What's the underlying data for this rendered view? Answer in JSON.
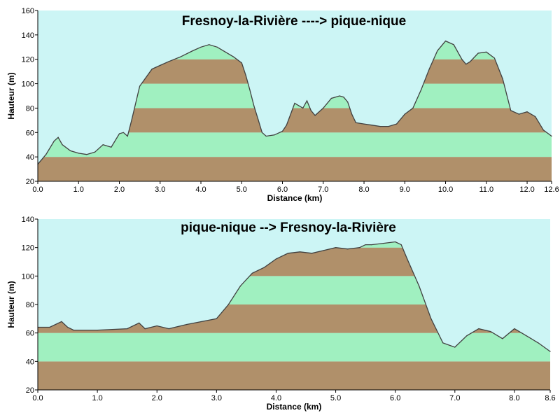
{
  "chart_data": [
    {
      "type": "area",
      "title": "Fresnoy-la-Rivière ----> pique-nique",
      "xlabel": "Distance   (km)",
      "ylabel": "Hauteur (m)",
      "xlim": [
        0,
        12.6
      ],
      "ylim": [
        20,
        160
      ],
      "y_ticks": [
        20,
        40,
        60,
        80,
        100,
        120,
        140,
        160
      ],
      "x_ticks": [
        0,
        1,
        2,
        3,
        4,
        5,
        6,
        7,
        8,
        9,
        10,
        11,
        12,
        12.6
      ],
      "x_tick_labels": [
        "0.0",
        "1.0",
        "2.0",
        "3.0",
        "4.0",
        "5.0",
        "6.0",
        "7.0",
        "8.0",
        "9.0",
        "10.0",
        "11.0",
        "12.0",
        "12.6"
      ],
      "band_step": 20,
      "colors": {
        "sky": "#ccf5f5",
        "band_a": "#b0906a",
        "band_b": "#a0f0c0",
        "profile_line": "#404040"
      },
      "x": [
        0,
        0.2,
        0.4,
        0.5,
        0.6,
        0.8,
        1.0,
        1.2,
        1.4,
        1.6,
        1.8,
        2.0,
        2.1,
        2.2,
        2.3,
        2.5,
        2.8,
        3.0,
        3.2,
        3.5,
        3.8,
        4.0,
        4.2,
        4.4,
        4.6,
        4.8,
        5.0,
        5.1,
        5.2,
        5.3,
        5.4,
        5.5,
        5.6,
        5.8,
        6.0,
        6.1,
        6.2,
        6.3,
        6.4,
        6.5,
        6.6,
        6.7,
        6.8,
        7.0,
        7.2,
        7.4,
        7.5,
        7.6,
        7.7,
        7.8,
        8.0,
        8.2,
        8.4,
        8.6,
        8.8,
        9.0,
        9.2,
        9.4,
        9.6,
        9.8,
        10.0,
        10.2,
        10.4,
        10.5,
        10.6,
        10.8,
        11.0,
        11.2,
        11.4,
        11.6,
        11.8,
        12.0,
        12.2,
        12.4,
        12.6
      ],
      "y": [
        34,
        42,
        53,
        56,
        50,
        45,
        43,
        42,
        44,
        50,
        48,
        59,
        60,
        57,
        70,
        98,
        112,
        115,
        118,
        122,
        127,
        130,
        132,
        130,
        126,
        122,
        117,
        107,
        95,
        82,
        71,
        60,
        57,
        58,
        61,
        66,
        75,
        84,
        82,
        80,
        86,
        78,
        74,
        80,
        88,
        90,
        89,
        85,
        75,
        68,
        67,
        66,
        65,
        65,
        67,
        75,
        80,
        95,
        112,
        127,
        135,
        132,
        120,
        116,
        118,
        125,
        126,
        121,
        104,
        78,
        75,
        77,
        73,
        62,
        57
      ]
    },
    {
      "type": "area",
      "title": "pique-nique --> Fresnoy-la-Rivière",
      "xlabel": "Distance   (km)",
      "ylabel": "Hauteur (m)",
      "xlim": [
        0,
        8.6
      ],
      "ylim": [
        20,
        140
      ],
      "y_ticks": [
        20,
        40,
        60,
        80,
        100,
        120,
        140
      ],
      "x_ticks": [
        0,
        1,
        2,
        3,
        4,
        5,
        6,
        7,
        8,
        8.6
      ],
      "x_tick_labels": [
        "0.0",
        "1.0",
        "2.0",
        "3.0",
        "4.0",
        "5.0",
        "6.0",
        "7.0",
        "8.0",
        "8.6"
      ],
      "band_step": 20,
      "colors": {
        "sky": "#ccf5f5",
        "band_a": "#b0906a",
        "band_b": "#a0f0c0",
        "profile_line": "#404040"
      },
      "x": [
        0,
        0.2,
        0.4,
        0.5,
        0.6,
        1.0,
        1.5,
        1.7,
        1.8,
        2.0,
        2.2,
        2.5,
        3.0,
        3.2,
        3.4,
        3.6,
        3.8,
        4.0,
        4.2,
        4.4,
        4.6,
        4.8,
        5.0,
        5.2,
        5.4,
        5.5,
        5.6,
        5.8,
        6.0,
        6.1,
        6.2,
        6.4,
        6.6,
        6.8,
        7.0,
        7.2,
        7.4,
        7.6,
        7.8,
        8.0,
        8.2,
        8.4,
        8.6
      ],
      "y": [
        64,
        64,
        68,
        64,
        62,
        62,
        63,
        67,
        63,
        65,
        63,
        66,
        70,
        80,
        93,
        102,
        106,
        112,
        116,
        117,
        116,
        118,
        120,
        119,
        120,
        122,
        122,
        123,
        124,
        122,
        112,
        93,
        70,
        53,
        50,
        58,
        63,
        61,
        56,
        63,
        58,
        53,
        47
      ]
    }
  ]
}
